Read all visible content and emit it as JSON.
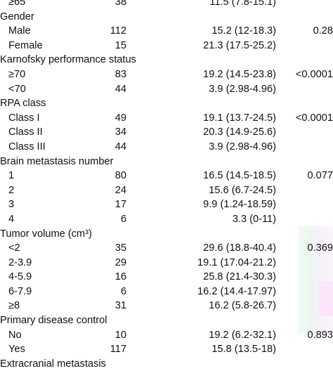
{
  "rows": [
    {
      "label": "≥65",
      "n": "38",
      "median": "11.5 (7.8-15.1)",
      "p": ""
    },
    {
      "label": "Gender",
      "n": "",
      "median": "",
      "p": ""
    },
    {
      "label": "Male",
      "n": "112",
      "median": "15.2 (12-18.3)",
      "p": "0.28"
    },
    {
      "label": "Female",
      "n": "15",
      "median": "21.3 (17.5-25.2)",
      "p": ""
    },
    {
      "label": "Karnofsky performance status",
      "n": "",
      "median": "",
      "p": ""
    },
    {
      "label": "≥70",
      "n": "83",
      "median": "19.2 (14.5-23.8)",
      "p": "<0.0001"
    },
    {
      "label": "<70",
      "n": "44",
      "median": "3.9 (2.98-4.96)",
      "p": ""
    },
    {
      "label": "RPA class",
      "n": "",
      "median": "",
      "p": ""
    },
    {
      "label": "Class I",
      "n": "49",
      "median": "19.1 (13.7-24.5)",
      "p": "<0.0001"
    },
    {
      "label": "Class II",
      "n": "34",
      "median": "20.3 (14.9-25.6)",
      "p": ""
    },
    {
      "label": "Class III",
      "n": "44",
      "median": "3.9 (2.98-4.96)",
      "p": ""
    },
    {
      "label": "Brain metastasis number",
      "n": "",
      "median": "",
      "p": ""
    },
    {
      "label": "1",
      "n": "80",
      "median": "16.5 (14.5-18.5)",
      "p": "0.077"
    },
    {
      "label": "2",
      "n": "24",
      "median": "15.6 (6.7-24.5)",
      "p": ""
    },
    {
      "label": "3",
      "n": "17",
      "median": "9.9 (1.24-18.59)",
      "p": ""
    },
    {
      "label": "4",
      "n": "6",
      "median": "3.3 (0-11)",
      "p": ""
    },
    {
      "label": "Tumor volume (cm³)",
      "n": "",
      "median": "",
      "p": ""
    },
    {
      "label": "<2",
      "n": "35",
      "median": "29.6 (18.8-40.4)",
      "p": "0.369"
    },
    {
      "label": "2-3.9",
      "n": "29",
      "median": "19.1 (17.04-21.2)",
      "p": ""
    },
    {
      "label": "4-5.9",
      "n": "16",
      "median": "25.8 (21.4-30.3)",
      "p": ""
    },
    {
      "label": "6-7.9",
      "n": "6",
      "median": "16.2 (14.4-17.97)",
      "p": ""
    },
    {
      "label": "≥8",
      "n": "31",
      "median": "16.2 (5.8-26.7)",
      "p": ""
    },
    {
      "label": "Primary disease control",
      "n": "",
      "median": "",
      "p": ""
    },
    {
      "label": "No",
      "n": "10",
      "median": "19.2 (6.2-32.1)",
      "p": "0.893"
    },
    {
      "label": "Yes",
      "n": "117",
      "median": "15.8 (13.5-18)",
      "p": ""
    },
    {
      "label": "Extracranial metastasis",
      "n": "",
      "median": "",
      "p": ""
    }
  ]
}
